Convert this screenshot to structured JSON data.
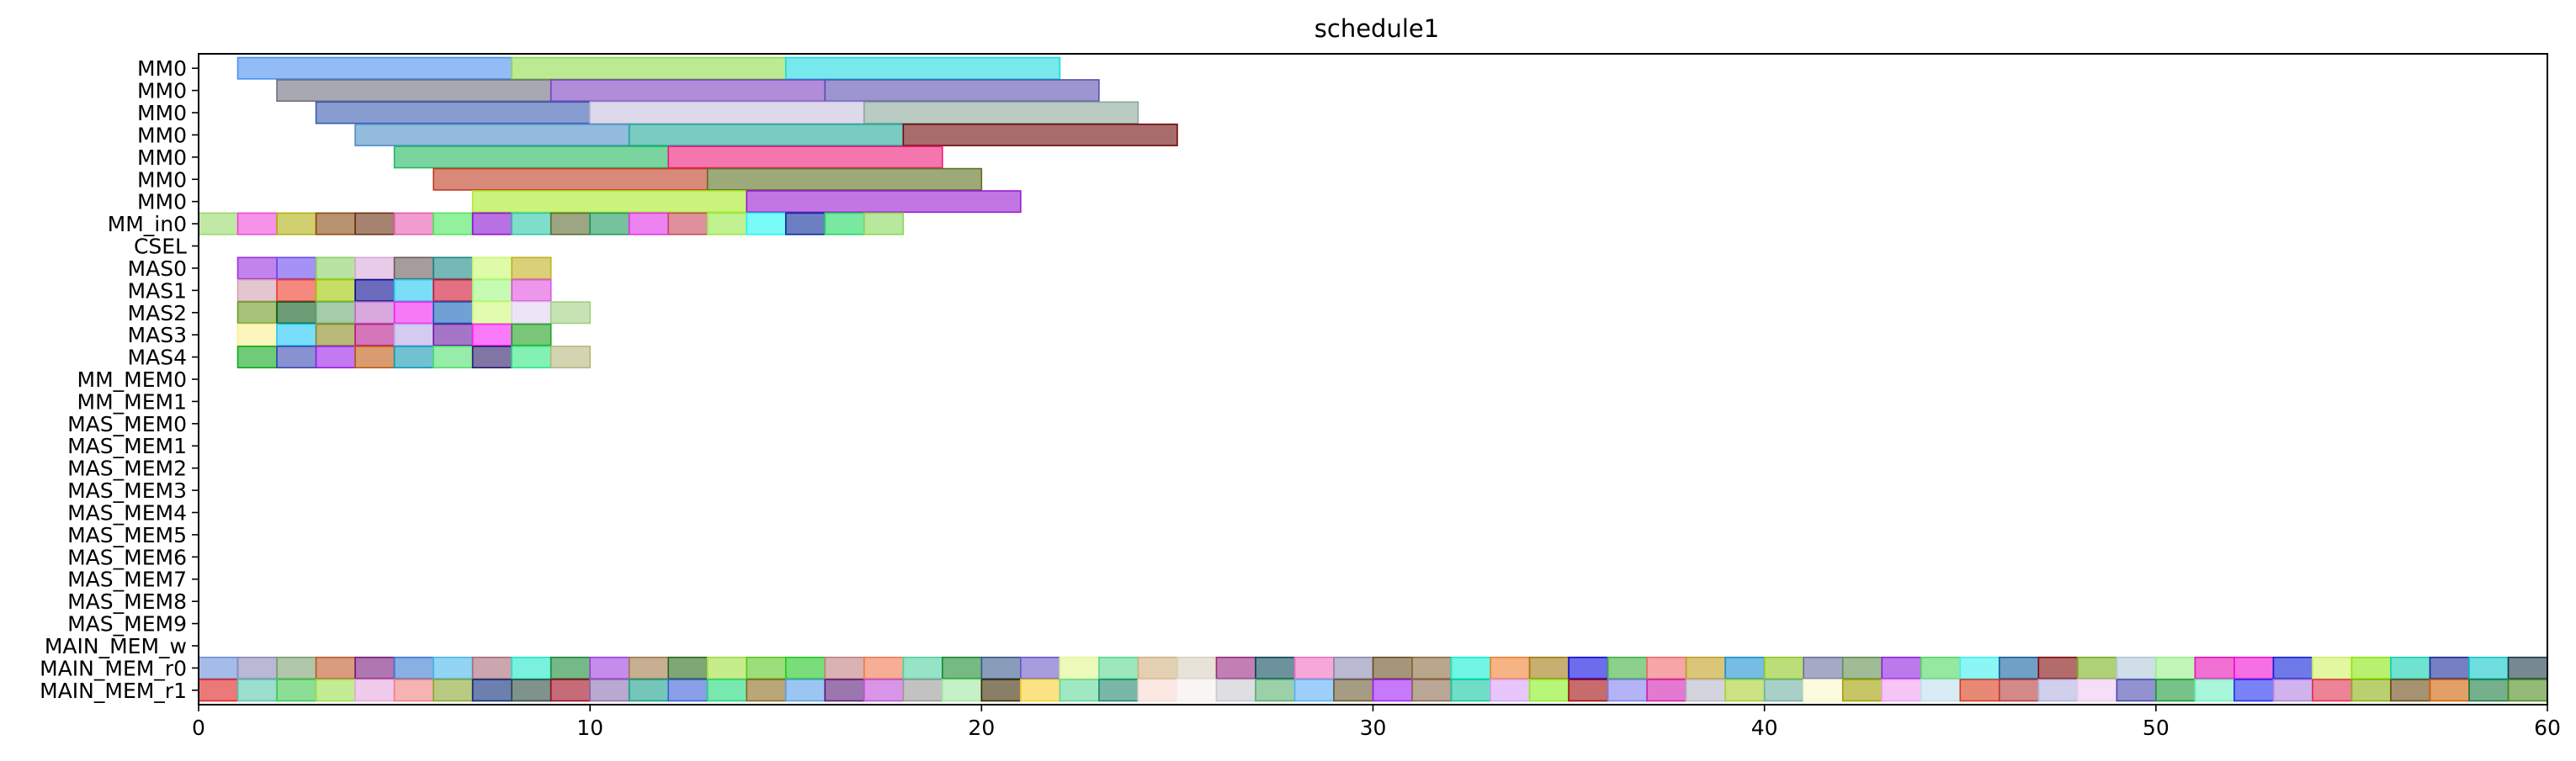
{
  "chart_data": {
    "type": "gantt",
    "title": "schedule1",
    "xlabel": "",
    "ylabel": "",
    "xlim": [
      0,
      60
    ],
    "x_ticks": [
      0,
      10,
      20,
      30,
      40,
      50,
      60
    ],
    "rows": [
      "MM0",
      "MM0",
      "MM0",
      "MM0",
      "MM0",
      "MM0",
      "MM0",
      "MM_in0",
      "CSEL",
      "MAS0",
      "MAS1",
      "MAS2",
      "MAS3",
      "MAS4",
      "MM_MEM0",
      "MM_MEM1",
      "MAS_MEM0",
      "MAS_MEM1",
      "MAS_MEM2",
      "MAS_MEM3",
      "MAS_MEM4",
      "MAS_MEM5",
      "MAS_MEM6",
      "MAS_MEM7",
      "MAS_MEM8",
      "MAS_MEM9",
      "MAIN_MEM_w",
      "MAIN_MEM_r0",
      "MAIN_MEM_r1"
    ],
    "tasks": [
      {
        "row": 0,
        "start": 1,
        "end": 8,
        "color": "#4a90f0"
      },
      {
        "row": 0,
        "start": 8,
        "end": 15,
        "color": "#8fdc4a"
      },
      {
        "row": 0,
        "start": 15,
        "end": 22,
        "color": "#1ddbe0"
      },
      {
        "row": 1,
        "start": 2,
        "end": 9,
        "color": "#6e6e7e"
      },
      {
        "row": 1,
        "start": 9,
        "end": 16,
        "color": "#7b3fc0"
      },
      {
        "row": 1,
        "start": 16,
        "end": 23,
        "color": "#5a4fb0"
      },
      {
        "row": 2,
        "start": 3,
        "end": 10,
        "color": "#3a5ab0"
      },
      {
        "row": 2,
        "start": 10,
        "end": 17,
        "color": "#c8c0dc"
      },
      {
        "row": 2,
        "start": 17,
        "end": 24,
        "color": "#8aa89a"
      },
      {
        "row": 3,
        "start": 4,
        "end": 11,
        "color": "#4a8ec8"
      },
      {
        "row": 3,
        "start": 11,
        "end": 18,
        "color": "#1fa898"
      },
      {
        "row": 3,
        "start": 18,
        "end": 25,
        "color": "#6e0a0a"
      },
      {
        "row": 4,
        "start": 5,
        "end": 12,
        "color": "#22b860"
      },
      {
        "row": 4,
        "start": 12,
        "end": 19,
        "color": "#ee1a78"
      },
      {
        "row": 5,
        "start": 6,
        "end": 13,
        "color": "#c03a20"
      },
      {
        "row": 5,
        "start": 13,
        "end": 20,
        "color": "#5e7020"
      },
      {
        "row": 6,
        "start": 7,
        "end": 14,
        "color": "#a8ec28"
      },
      {
        "row": 6,
        "start": 14,
        "end": 21,
        "color": "#9a1ad0"
      },
      {
        "row": 7,
        "start": 0,
        "end": 1,
        "color": "#9ad86a"
      },
      {
        "row": 7,
        "start": 1,
        "end": 2,
        "color": "#f04ad8"
      },
      {
        "row": 7,
        "start": 2,
        "end": 3,
        "color": "#b0b010"
      },
      {
        "row": 7,
        "start": 3,
        "end": 4,
        "color": "#8a4a10"
      },
      {
        "row": 7,
        "start": 4,
        "end": 5,
        "color": "#6a3010"
      },
      {
        "row": 7,
        "start": 5,
        "end": 6,
        "color": "#e85ab0"
      },
      {
        "row": 7,
        "start": 6,
        "end": 7,
        "color": "#4ae85a"
      },
      {
        "row": 7,
        "start": 7,
        "end": 8,
        "color": "#8a10d0"
      },
      {
        "row": 7,
        "start": 8,
        "end": 9,
        "color": "#2ac8a8"
      },
      {
        "row": 7,
        "start": 9,
        "end": 10,
        "color": "#5a6a30"
      },
      {
        "row": 7,
        "start": 10,
        "end": 11,
        "color": "#1a9a5a"
      },
      {
        "row": 7,
        "start": 11,
        "end": 12,
        "color": "#e030e8"
      },
      {
        "row": 7,
        "start": 12,
        "end": 13,
        "color": "#c8485a"
      },
      {
        "row": 7,
        "start": 13,
        "end": 14,
        "color": "#98e848"
      },
      {
        "row": 7,
        "start": 14,
        "end": 15,
        "color": "#20f8f0"
      },
      {
        "row": 7,
        "start": 15,
        "end": 16,
        "color": "#0a2a9a"
      },
      {
        "row": 7,
        "start": 16,
        "end": 17,
        "color": "#20d860"
      },
      {
        "row": 7,
        "start": 17,
        "end": 18,
        "color": "#88d858"
      },
      {
        "row": 9,
        "start": 1,
        "end": 2,
        "color": "#9a30e0"
      },
      {
        "row": 9,
        "start": 2,
        "end": 3,
        "color": "#6a4af0"
      },
      {
        "row": 9,
        "start": 3,
        "end": 4,
        "color": "#88d060"
      },
      {
        "row": 9,
        "start": 4,
        "end": 5,
        "color": "#d8a8d8"
      },
      {
        "row": 9,
        "start": 5,
        "end": 6,
        "color": "#6a5a5a"
      },
      {
        "row": 9,
        "start": 6,
        "end": 7,
        "color": "#1a8888"
      },
      {
        "row": 9,
        "start": 7,
        "end": 8,
        "color": "#c8f870"
      },
      {
        "row": 9,
        "start": 8,
        "end": 9,
        "color": "#c0b020"
      },
      {
        "row": 10,
        "start": 1,
        "end": 2,
        "color": "#d0a0b0"
      },
      {
        "row": 10,
        "start": 2,
        "end": 3,
        "color": "#f03a2a"
      },
      {
        "row": 10,
        "start": 3,
        "end": 4,
        "color": "#a0c800"
      },
      {
        "row": 10,
        "start": 4,
        "end": 5,
        "color": "#0a0a90"
      },
      {
        "row": 10,
        "start": 5,
        "end": 6,
        "color": "#20c8f0"
      },
      {
        "row": 10,
        "start": 6,
        "end": 7,
        "color": "#d01030"
      },
      {
        "row": 10,
        "start": 7,
        "end": 8,
        "color": "#a0f880"
      },
      {
        "row": 10,
        "start": 8,
        "end": 9,
        "color": "#e050e0"
      },
      {
        "row": 11,
        "start": 1,
        "end": 2,
        "color": "#6a9a20"
      },
      {
        "row": 11,
        "start": 2,
        "end": 3,
        "color": "#0a5a1a"
      },
      {
        "row": 11,
        "start": 3,
        "end": 4,
        "color": "#6aa870"
      },
      {
        "row": 11,
        "start": 4,
        "end": 5,
        "color": "#c070c8"
      },
      {
        "row": 11,
        "start": 5,
        "end": 6,
        "color": "#f020f0"
      },
      {
        "row": 11,
        "start": 6,
        "end": 7,
        "color": "#1060b8"
      },
      {
        "row": 11,
        "start": 7,
        "end": 8,
        "color": "#d0f878"
      },
      {
        "row": 11,
        "start": 8,
        "end": 9,
        "color": "#e0d0f0"
      },
      {
        "row": 11,
        "start": 9,
        "end": 10,
        "color": "#a0d080"
      },
      {
        "row": 12,
        "start": 1,
        "end": 2,
        "color": "#f8f090"
      },
      {
        "row": 12,
        "start": 2,
        "end": 3,
        "color": "#20c8f8"
      },
      {
        "row": 12,
        "start": 3,
        "end": 4,
        "color": "#8a8a20"
      },
      {
        "row": 12,
        "start": 4,
        "end": 5,
        "color": "#b81a8a"
      },
      {
        "row": 12,
        "start": 5,
        "end": 6,
        "color": "#b8a8e8"
      },
      {
        "row": 12,
        "start": 6,
        "end": 7,
        "color": "#6a1aa0"
      },
      {
        "row": 12,
        "start": 7,
        "end": 8,
        "color": "#f820f8"
      },
      {
        "row": 12,
        "start": 8,
        "end": 9,
        "color": "#20a020"
      },
      {
        "row": 13,
        "start": 1,
        "end": 2,
        "color": "#10a820"
      },
      {
        "row": 13,
        "start": 2,
        "end": 3,
        "color": "#3a4ab0"
      },
      {
        "row": 13,
        "start": 3,
        "end": 4,
        "color": "#9a20e8"
      },
      {
        "row": 13,
        "start": 4,
        "end": 5,
        "color": "#c05a10"
      },
      {
        "row": 13,
        "start": 5,
        "end": 6,
        "color": "#109ab0"
      },
      {
        "row": 13,
        "start": 6,
        "end": 7,
        "color": "#50e070"
      },
      {
        "row": 13,
        "start": 7,
        "end": 8,
        "color": "#2a1a6a"
      },
      {
        "row": 13,
        "start": 8,
        "end": 9,
        "color": "#30e880"
      },
      {
        "row": 13,
        "start": 9,
        "end": 10,
        "color": "#b8b880"
      }
    ],
    "main_mem_rows": {
      "w_row": 26,
      "r0_row": 27,
      "r1_row": 28,
      "start": 0,
      "end": 60,
      "w_colors": [],
      "r0_colors": [
        "#6a90d8",
        "#8a8ab8",
        "#7aa070",
        "#c05a2a",
        "#7a1a7a",
        "#3a7ad0",
        "#4ab8e8",
        "#a86a7a",
        "#20e8c8",
        "#1a8a3a",
        "#a040e0",
        "#a07a4a",
        "#2a6a1a",
        "#a0e040",
        "#5ac820",
        "#20c820",
        "#c08080",
        "#f07a50",
        "#50d0a0",
        "#1a8a30",
        "#3a5a8a",
        "#6a5ac8",
        "#e0f890",
        "#5ad890",
        "#d0b080",
        "#d8d0c0",
        "#9a2a80",
        "#0a4a5a",
        "#f070c0",
        "#8a8ab0",
        "#6a5020",
        "#8a6a40",
        "#10f0d0",
        "#f08030",
        "#a07a10",
        "#0a0ae0",
        "#40b040",
        "#f06a6a",
        "#c0a020",
        "#1a90d0",
        "#90c820",
        "#6a70a0",
        "#609050",
        "#9020e0",
        "#50d860",
        "#40f0f0",
        "#1060a0",
        "#800a0a",
        "#78b020",
        "#b0c8d8",
        "#98f088",
        "#e810b8",
        "#f010d0",
        "#1020d8",
        "#d0f060",
        "#88e810",
        "#10d0b0",
        "#1a2a9a",
        "#10c8c8",
        "#1a3a4a"
      ],
      "r1_colors": [
        "#e02020",
        "#5ac8b0",
        "#40c850",
        "#9ae050",
        "#e8a8e0",
        "#f08080",
        "#8aa830",
        "#0a2a7a",
        "#2a4a40",
        "#a00a20",
        "#8a70b0",
        "#18a088",
        "#3a60d8",
        "#20d878",
        "#8a6a20",
        "#5aa0e8",
        "#5a1a7a",
        "#c050d8",
        "#9a9a9a",
        "#a0e8a0",
        "#3a2a00",
        "#f8d030",
        "#60d898",
        "#208870",
        "#f8d8d0",
        "#f8f0f0",
        "#c8c8d0",
        "#5ab070",
        "#5ab0f8",
        "#6a5a30",
        "#a020f8",
        "#8a6a50",
        "#10c8a0",
        "#d8a0f8",
        "#88f020",
        "#a00a0a",
        "#8080f0",
        "#d020b0",
        "#b8b8c8",
        "#a8d030",
        "#70b0a0",
        "#f8f8c8",
        "#a0a000",
        "#f0a0f0",
        "#c0e0f0",
        "#d83a1a",
        "#b83a3a",
        "#b0b0e0",
        "#f0c8f0",
        "#4a4ab0",
        "#1a9a3a",
        "#70f0c0",
        "#2030f0",
        "#b080e0",
        "#e03050",
        "#8ab010",
        "#6a4a10",
        "#d06000",
        "#1a7a40",
        "#4a8a1a"
      ]
    }
  }
}
